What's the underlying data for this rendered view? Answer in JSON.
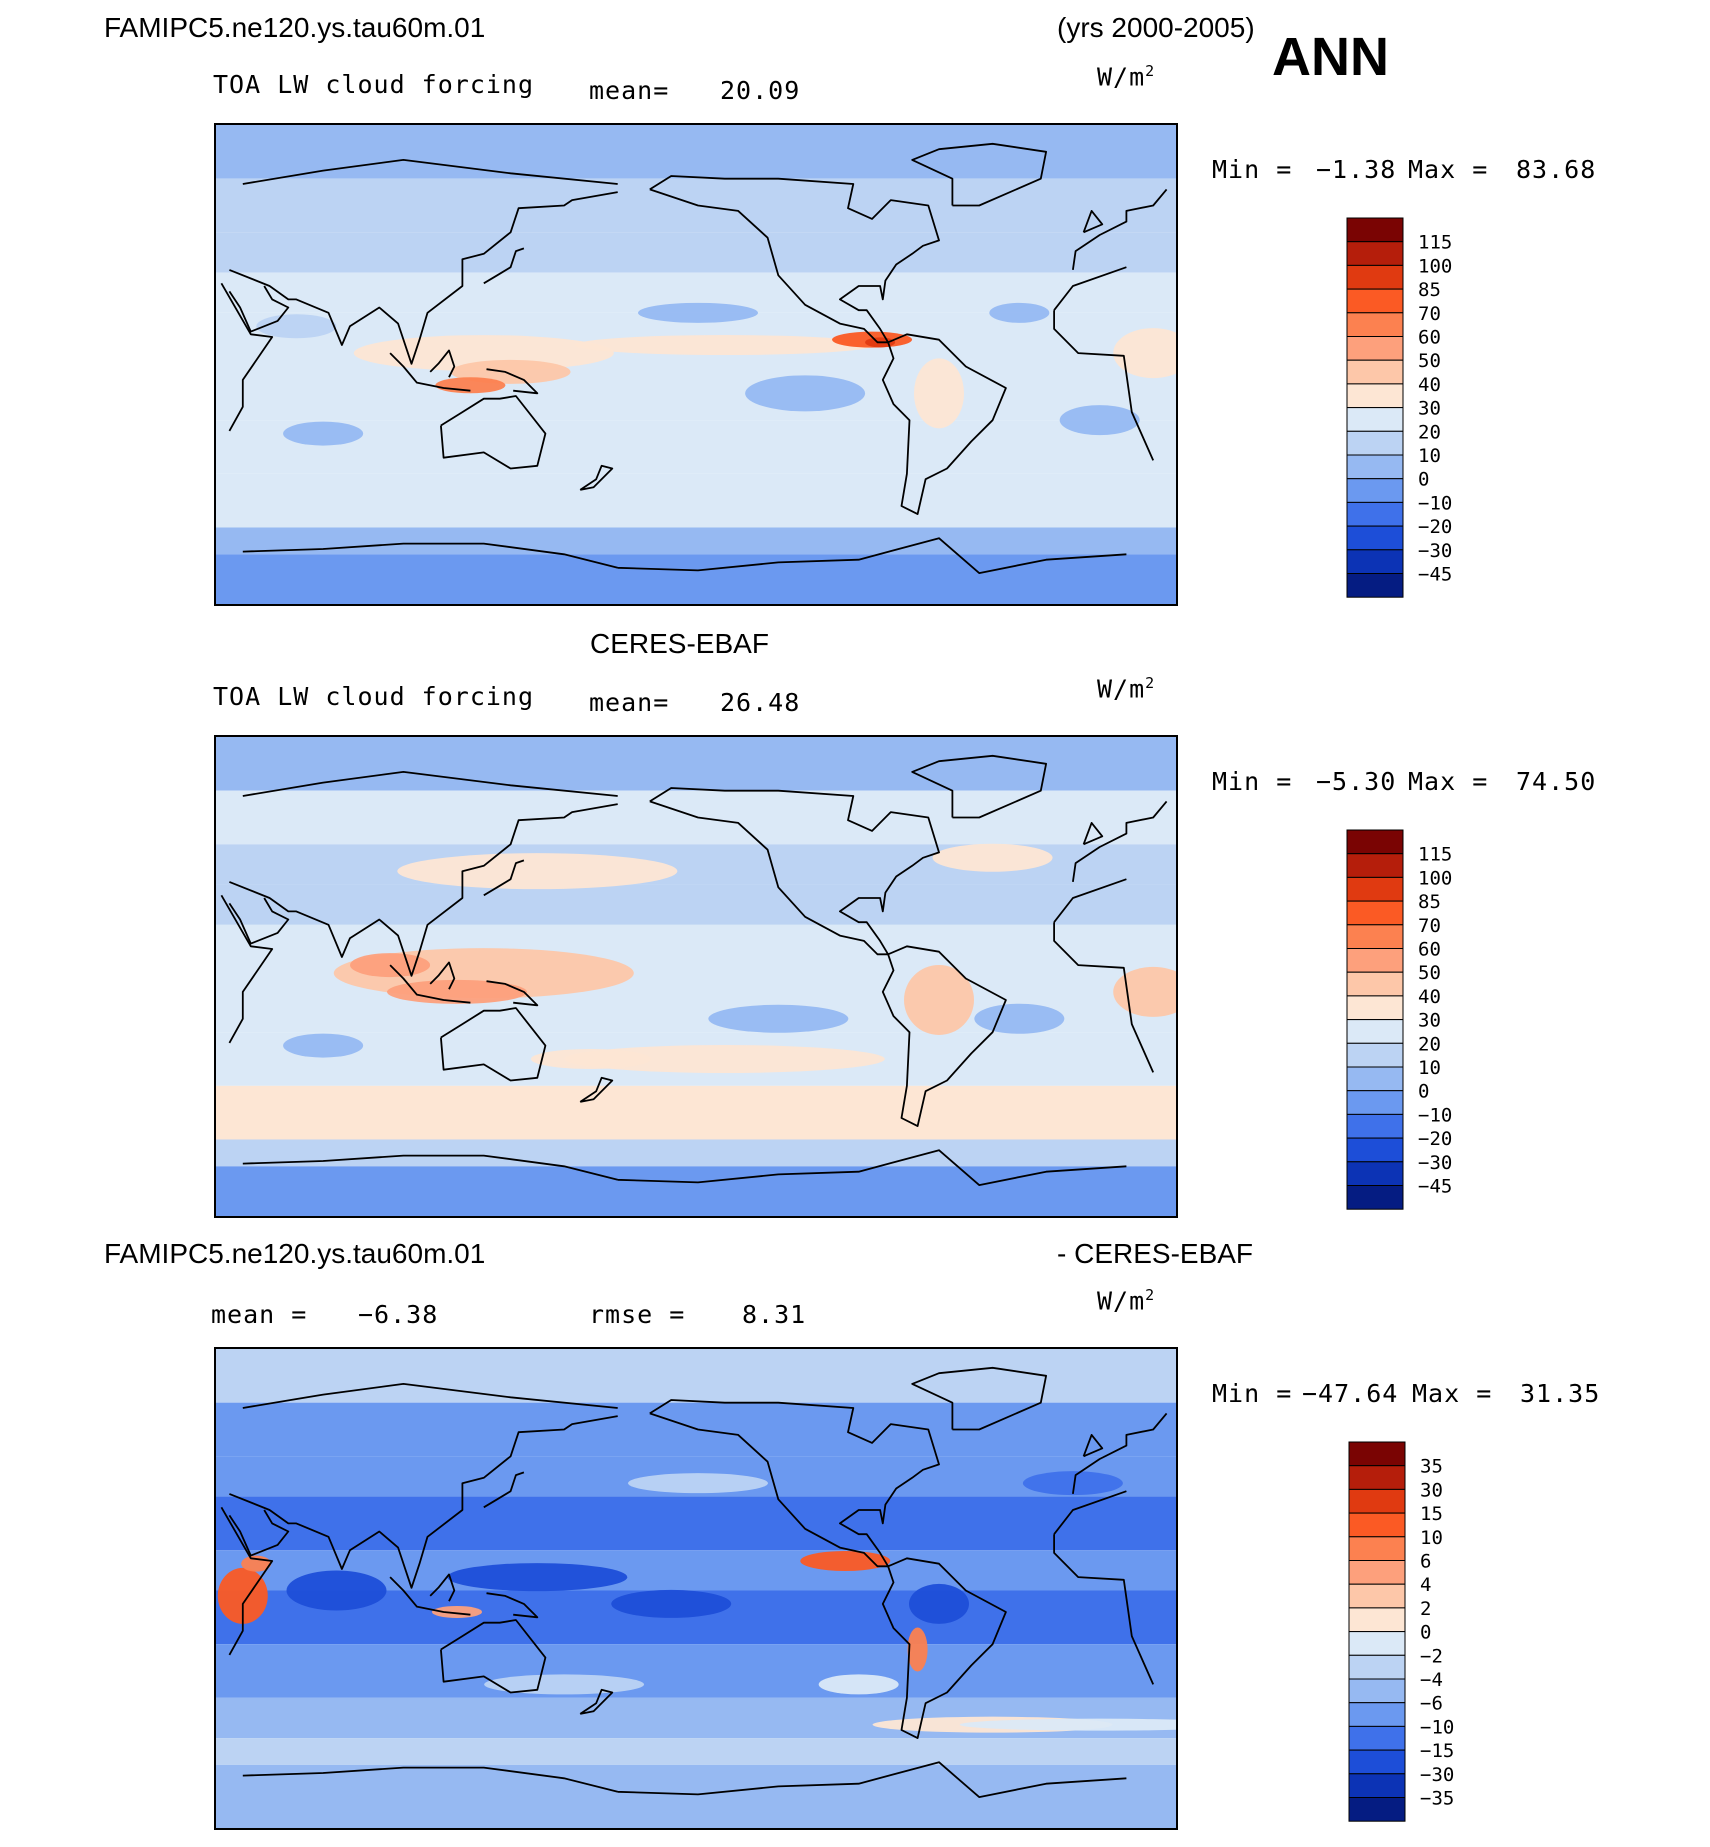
{
  "header": {
    "case_name": "FAMIPC5.ne120.ys.tau60m.01",
    "years": "(yrs 2000-2005)",
    "season": "ANN"
  },
  "panels": [
    {
      "id": "model",
      "title": "",
      "variable": "TOA LW cloud forcing",
      "mean_label": "mean=",
      "mean_value": "20.09",
      "units": "W/m",
      "units_sup": "2",
      "min_label": "Min =",
      "min_value": "−1.38",
      "max_label": "Max =",
      "max_value": "83.68",
      "colorbar": {
        "labels": [
          "115",
          "100",
          "85",
          "70",
          "60",
          "50",
          "40",
          "30",
          "20",
          "10",
          "0",
          "−10",
          "−20",
          "−30",
          "−45"
        ],
        "colors": [
          "#7a0403",
          "#b51e0b",
          "#e03a11",
          "#fb5a24",
          "#fc8150",
          "#fda07c",
          "#fdc7a9",
          "#fde6d4",
          "#dbe9f7",
          "#bcd3f3",
          "#96b9f2",
          "#6b99f0",
          "#3f71ea",
          "#1d4ed8",
          "#0c33b5",
          "#051c82"
        ]
      }
    },
    {
      "id": "obs",
      "title": "CERES-EBAF",
      "variable": "TOA LW cloud forcing",
      "mean_label": "mean=",
      "mean_value": "26.48",
      "units": "W/m",
      "units_sup": "2",
      "min_label": "Min =",
      "min_value": "−5.30",
      "max_label": "Max =",
      "max_value": "74.50",
      "colorbar": {
        "labels": [
          "115",
          "100",
          "85",
          "70",
          "60",
          "50",
          "40",
          "30",
          "20",
          "10",
          "0",
          "−10",
          "−20",
          "−30",
          "−45"
        ],
        "colors": [
          "#7a0403",
          "#b51e0b",
          "#e03a11",
          "#fb5a24",
          "#fc8150",
          "#fda07c",
          "#fdc7a9",
          "#fde6d4",
          "#dbe9f7",
          "#bcd3f3",
          "#96b9f2",
          "#6b99f0",
          "#3f71ea",
          "#1d4ed8",
          "#0c33b5",
          "#051c82"
        ]
      }
    },
    {
      "id": "diff",
      "title_left": "FAMIPC5.ne120.ys.tau60m.01",
      "title_right": "- CERES-EBAF",
      "mean_label": "mean =",
      "mean_value": "−6.38",
      "rmse_label": "rmse =",
      "rmse_value": "8.31",
      "units": "W/m",
      "units_sup": "2",
      "min_label": "Min =",
      "min_value": "−47.64",
      "max_label": "Max =",
      "max_value": "31.35",
      "colorbar": {
        "labels": [
          "35",
          "30",
          "15",
          "10",
          "6",
          "4",
          "2",
          "0",
          "−2",
          "−4",
          "−6",
          "−10",
          "−15",
          "−30",
          "−35"
        ],
        "colors": [
          "#7a0403",
          "#b51e0b",
          "#e03a11",
          "#fb5a24",
          "#fc8150",
          "#fda07c",
          "#fdc7a9",
          "#fde6d4",
          "#dbe9f7",
          "#bcd3f3",
          "#96b9f2",
          "#6b99f0",
          "#3f71ea",
          "#1d4ed8",
          "#0c33b5",
          "#051c82"
        ]
      }
    }
  ],
  "chart_data": [
    {
      "type": "heatmap",
      "title": "FAMIPC5.ne120.ys.tau60m.01 (yrs 2000-2005) ANN",
      "subtitle": "TOA LW cloud forcing",
      "units": "W/m2",
      "mean": 20.09,
      "min": -1.38,
      "max": 83.68,
      "levels": [
        -45,
        -30,
        -20,
        -10,
        0,
        10,
        20,
        30,
        40,
        50,
        60,
        70,
        85,
        100,
        115
      ]
    },
    {
      "type": "heatmap",
      "title": "CERES-EBAF",
      "subtitle": "TOA LW cloud forcing",
      "units": "W/m2",
      "mean": 26.48,
      "min": -5.3,
      "max": 74.5,
      "levels": [
        -45,
        -30,
        -20,
        -10,
        0,
        10,
        20,
        30,
        40,
        50,
        60,
        70,
        85,
        100,
        115
      ]
    },
    {
      "type": "heatmap",
      "title": "FAMIPC5.ne120.ys.tau60m.01 - CERES-EBAF",
      "units": "W/m2",
      "mean": -6.38,
      "rmse": 8.31,
      "min": -47.64,
      "max": 31.35,
      "levels": [
        -35,
        -30,
        -15,
        -10,
        -6,
        -4,
        -2,
        0,
        2,
        4,
        6,
        10,
        15,
        30,
        35
      ]
    }
  ]
}
